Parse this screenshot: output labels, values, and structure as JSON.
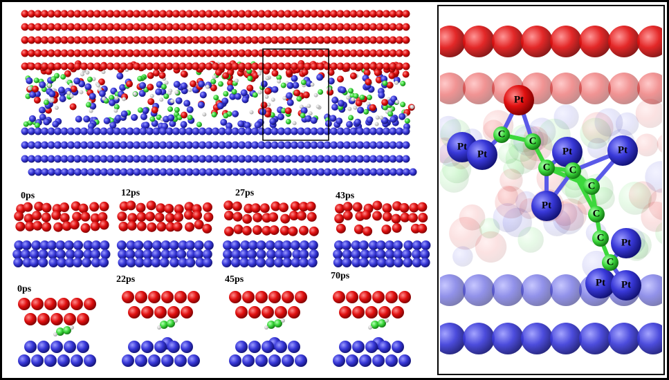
{
  "panels": {
    "time_labels_top": [
      "0ps",
      "12ps",
      "27ps",
      "43ps"
    ],
    "time_labels_bottom": [
      "0ps",
      "22ps",
      "45ps",
      "70ps"
    ]
  },
  "zoom": {
    "pt_labels": [
      "Pt",
      "Pt",
      "Pt",
      "Pt",
      "Pt",
      "Pt",
      "Pt",
      "Pt",
      "Pt"
    ],
    "c_labels": [
      "C",
      "C",
      "C",
      "C",
      "C",
      "C",
      "C",
      "C"
    ]
  }
}
